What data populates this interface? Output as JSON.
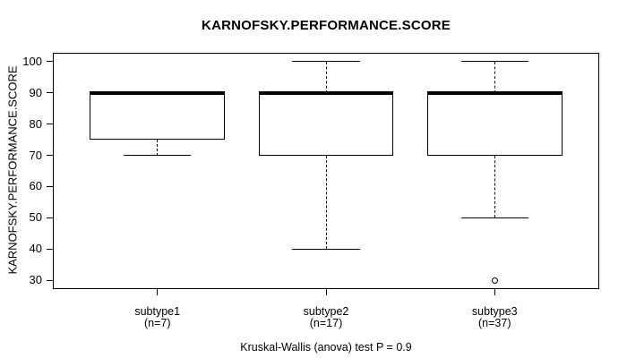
{
  "chart_data": {
    "type": "boxplot",
    "title": "KARNOFSKY.PERFORMANCE.SCORE",
    "ylabel": "KARNOFSKY.PERFORMANCE.SCORE",
    "xlabel": "",
    "ylim": [
      27.2,
      102.8
    ],
    "y_ticks": [
      100,
      90,
      80,
      70,
      60,
      50,
      40,
      30
    ],
    "grid": false,
    "legend": "none",
    "categories": [
      "subtype1",
      "subtype2",
      "subtype3"
    ],
    "category_sublabels": [
      "(n=7)",
      "(n=17)",
      "(n=37)"
    ],
    "series": [
      {
        "name": "subtype1",
        "n": 7,
        "whisker_low": 70,
        "q1": 75,
        "median": 90,
        "q3": 90,
        "whisker_high": 90,
        "outliers": []
      },
      {
        "name": "subtype2",
        "n": 17,
        "whisker_low": 40,
        "q1": 70,
        "median": 90,
        "q3": 90,
        "whisker_high": 100,
        "outliers": []
      },
      {
        "name": "subtype3",
        "n": 37,
        "whisker_low": 50,
        "q1": 70,
        "median": 90,
        "q3": 90,
        "whisker_high": 100,
        "outliers": [
          30
        ]
      }
    ],
    "annotation": "Kruskal-Wallis (anova) test P = 0.9"
  },
  "colors": {
    "foreground": "#000000",
    "background": "#ffffff"
  }
}
